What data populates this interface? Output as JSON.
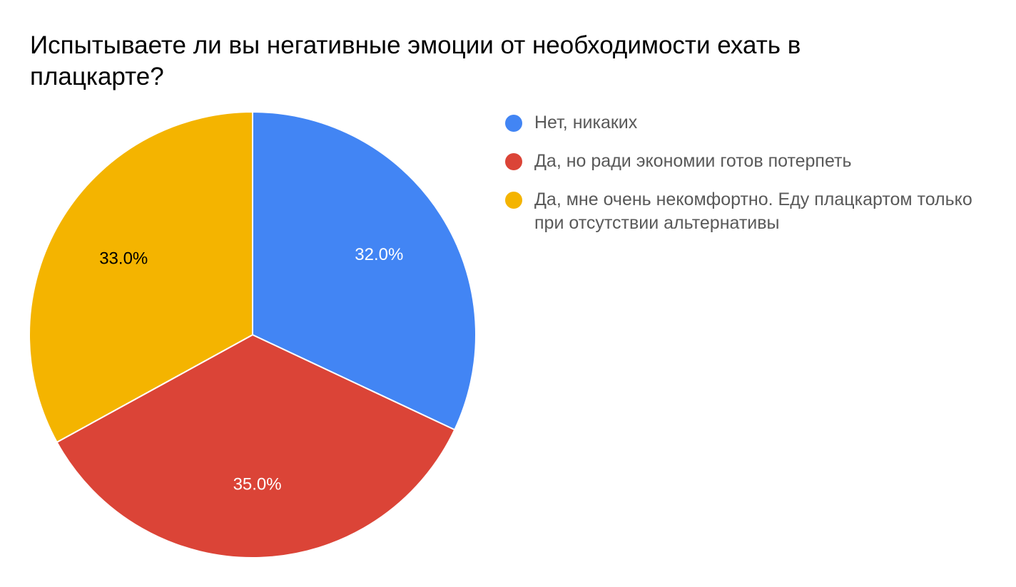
{
  "chart_data": {
    "type": "pie",
    "title": "Испытываете ли вы негативные эмоции от необходимости ехать в плацкарте?",
    "slices": [
      {
        "label": "Нет, никаких",
        "value": 32.0,
        "display": "32.0%",
        "color": "#4285F4",
        "label_color": "#ffffff"
      },
      {
        "label": "Да, но ради экономии готов потерпеть",
        "value": 35.0,
        "display": "35.0%",
        "color": "#DB4437",
        "label_color": "#ffffff"
      },
      {
        "label": "Да, мне очень некомфортно. Еду плацкартом только при отсутствии альтернативы",
        "value": 33.0,
        "display": "33.0%",
        "color": "#F4B400",
        "label_color": "#000000"
      }
    ],
    "legend_position": "right"
  }
}
